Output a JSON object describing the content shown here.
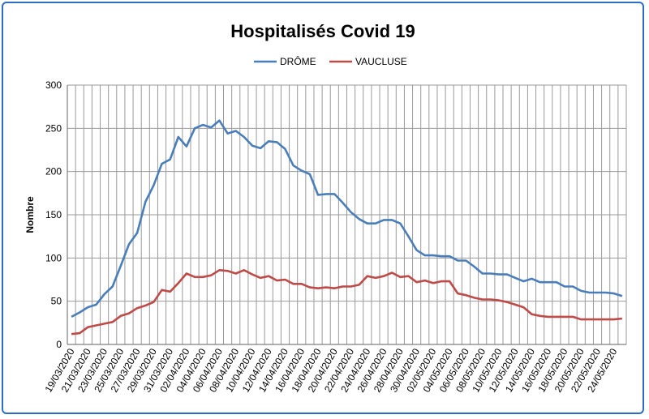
{
  "chart_data": {
    "type": "line",
    "title": "Hospitalisés Covid 19",
    "xlabel": "",
    "ylabel": "Nombre",
    "ylim": [
      0,
      300
    ],
    "yticks": [
      0,
      50,
      100,
      150,
      200,
      250,
      300
    ],
    "grid": true,
    "legend_position": "top",
    "x_start": "19/03/2020",
    "x_end": "25/05/2020",
    "x": [
      "19/03/2020",
      "20/03/2020",
      "21/03/2020",
      "22/03/2020",
      "23/03/2020",
      "24/03/2020",
      "25/03/2020",
      "26/03/2020",
      "27/03/2020",
      "28/03/2020",
      "29/03/2020",
      "30/03/2020",
      "31/03/2020",
      "01/04/2020",
      "02/04/2020",
      "03/04/2020",
      "04/04/2020",
      "05/04/2020",
      "06/04/2020",
      "07/04/2020",
      "08/04/2020",
      "09/04/2020",
      "10/04/2020",
      "11/04/2020",
      "12/04/2020",
      "13/04/2020",
      "14/04/2020",
      "15/04/2020",
      "16/04/2020",
      "17/04/2020",
      "18/04/2020",
      "19/04/2020",
      "20/04/2020",
      "21/04/2020",
      "22/04/2020",
      "23/04/2020",
      "24/04/2020",
      "25/04/2020",
      "26/04/2020",
      "27/04/2020",
      "28/04/2020",
      "29/04/2020",
      "30/04/2020",
      "01/05/2020",
      "02/05/2020",
      "03/05/2020",
      "04/05/2020",
      "05/05/2020",
      "06/05/2020",
      "07/05/2020",
      "08/05/2020",
      "09/05/2020",
      "10/05/2020",
      "11/05/2020",
      "12/05/2020",
      "13/05/2020",
      "14/05/2020",
      "15/05/2020",
      "16/05/2020",
      "17/05/2020",
      "18/05/2020",
      "19/05/2020",
      "20/05/2020",
      "21/05/2020",
      "22/05/2020",
      "23/05/2020",
      "24/05/2020",
      "25/05/2020"
    ],
    "x_tick_labels": [
      "19/03/2020",
      "21/03/2020",
      "23/03/2020",
      "25/03/2020",
      "27/03/2020",
      "29/03/2020",
      "31/03/2020",
      "02/04/2020",
      "04/04/2020",
      "06/04/2020",
      "08/04/2020",
      "10/04/2020",
      "12/04/2020",
      "14/04/2020",
      "16/04/2020",
      "18/04/2020",
      "20/04/2020",
      "22/04/2020",
      "24/04/2020",
      "26/04/2020",
      "28/04/2020",
      "30/04/2020",
      "02/05/2020",
      "04/05/2020",
      "06/05/2020",
      "08/05/2020",
      "10/05/2020",
      "12/05/2020",
      "14/05/2020",
      "16/05/2020",
      "18/05/2020",
      "20/05/2020",
      "22/05/2020",
      "24/05/2020"
    ],
    "series": [
      {
        "name": "DRÔME",
        "color": "#4a7ebb",
        "values": [
          32,
          37,
          43,
          46,
          58,
          67,
          91,
          116,
          129,
          165,
          184,
          209,
          214,
          240,
          229,
          250,
          254,
          251,
          259,
          244,
          247,
          240,
          230,
          227,
          235,
          234,
          226,
          207,
          201,
          197,
          173,
          174,
          174,
          164,
          153,
          145,
          140,
          140,
          144,
          144,
          140,
          125,
          109,
          103,
          103,
          102,
          102,
          97,
          97,
          90,
          82,
          82,
          81,
          81,
          77,
          73,
          76,
          72,
          72,
          72,
          67,
          67,
          62,
          60,
          60,
          60,
          59,
          56
        ]
      },
      {
        "name": "VAUCLUSE",
        "color": "#be4b48",
        "values": [
          12,
          13,
          20,
          22,
          24,
          26,
          33,
          36,
          42,
          45,
          49,
          63,
          61,
          71,
          82,
          78,
          78,
          80,
          86,
          85,
          82,
          86,
          81,
          77,
          79,
          74,
          75,
          70,
          70,
          66,
          65,
          66,
          65,
          67,
          67,
          69,
          79,
          77,
          79,
          83,
          78,
          79,
          72,
          74,
          71,
          73,
          73,
          59,
          57,
          54,
          52,
          52,
          51,
          49,
          46,
          43,
          35,
          33,
          32,
          32,
          32,
          32,
          29,
          29,
          29,
          29,
          29,
          30
        ]
      }
    ]
  }
}
